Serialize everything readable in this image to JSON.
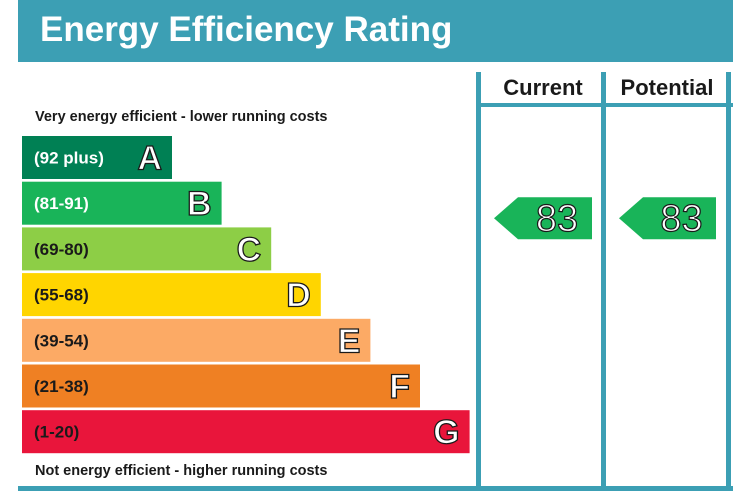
{
  "title": "Energy Efficiency Rating",
  "chart_data": {
    "type": "bar",
    "top_note": "Very energy efficient - lower running costs",
    "bottom_note": "Not energy efficient - higher running costs",
    "bands": [
      {
        "letter": "A",
        "range": "(92 plus)",
        "color": "#008054",
        "label_color": "#ffffff"
      },
      {
        "letter": "B",
        "range": "(81-91)",
        "color": "#19b459",
        "label_color": "#ffffff"
      },
      {
        "letter": "C",
        "range": "(69-80)",
        "color": "#8dce46",
        "label_color": "#1a1a1a"
      },
      {
        "letter": "D",
        "range": "(55-68)",
        "color": "#ffd500",
        "label_color": "#1a1a1a"
      },
      {
        "letter": "E",
        "range": "(39-54)",
        "color": "#fcaa65",
        "label_color": "#1a1a1a"
      },
      {
        "letter": "F",
        "range": "(21-38)",
        "color": "#ef8023",
        "label_color": "#1a1a1a"
      },
      {
        "letter": "G",
        "range": "(1-20)",
        "color": "#e9153b",
        "label_color": "#1a1a1a"
      }
    ],
    "columns": [
      "Current",
      "Potential"
    ],
    "current": {
      "value": 83,
      "band": "B"
    },
    "potential": {
      "value": 83,
      "band": "B"
    },
    "frame_color": "#3c9fb4",
    "arrow_color": "#19b459"
  }
}
